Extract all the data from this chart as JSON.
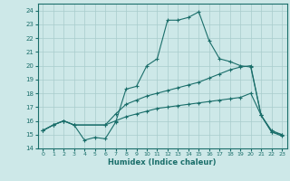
{
  "xlabel": "Humidex (Indice chaleur)",
  "bg_color": "#cde8e8",
  "grid_color": "#a8cccc",
  "line_color": "#1a6e6a",
  "xlim": [
    -0.5,
    23.5
  ],
  "ylim": [
    14,
    24.5
  ],
  "yticks": [
    14,
    15,
    16,
    17,
    18,
    19,
    20,
    21,
    22,
    23,
    24
  ],
  "xticks": [
    0,
    1,
    2,
    3,
    4,
    5,
    6,
    7,
    8,
    9,
    10,
    11,
    12,
    13,
    14,
    15,
    16,
    17,
    18,
    19,
    20,
    21,
    22,
    23
  ],
  "line1_x": [
    0,
    1,
    2,
    3,
    4,
    5,
    6,
    7,
    8,
    9,
    10,
    11,
    12,
    13,
    14,
    15,
    16,
    17,
    18,
    19,
    20,
    21,
    22,
    23
  ],
  "line1_y": [
    15.3,
    15.7,
    16.0,
    15.7,
    14.6,
    14.8,
    14.7,
    15.9,
    18.3,
    18.5,
    20.0,
    20.5,
    23.3,
    23.3,
    23.5,
    23.9,
    21.8,
    20.5,
    20.3,
    20.0,
    19.9,
    16.4,
    15.2,
    14.9
  ],
  "line2_x": [
    0,
    1,
    2,
    3,
    6,
    7,
    8,
    9,
    10,
    11,
    12,
    13,
    14,
    15,
    16,
    17,
    18,
    19,
    20,
    21,
    22,
    23
  ],
  "line2_y": [
    15.3,
    15.7,
    16.0,
    15.7,
    15.7,
    16.5,
    17.2,
    17.5,
    17.8,
    18.0,
    18.2,
    18.4,
    18.6,
    18.8,
    19.1,
    19.4,
    19.7,
    19.9,
    20.0,
    16.4,
    15.3,
    15.0
  ],
  "line3_x": [
    0,
    1,
    2,
    3,
    6,
    7,
    8,
    9,
    10,
    11,
    12,
    13,
    14,
    15,
    16,
    17,
    18,
    19,
    20,
    21,
    22,
    23
  ],
  "line3_y": [
    15.3,
    15.7,
    16.0,
    15.7,
    15.7,
    16.0,
    16.3,
    16.5,
    16.7,
    16.9,
    17.0,
    17.1,
    17.2,
    17.3,
    17.4,
    17.5,
    17.6,
    17.7,
    18.0,
    16.4,
    15.2,
    15.0
  ]
}
